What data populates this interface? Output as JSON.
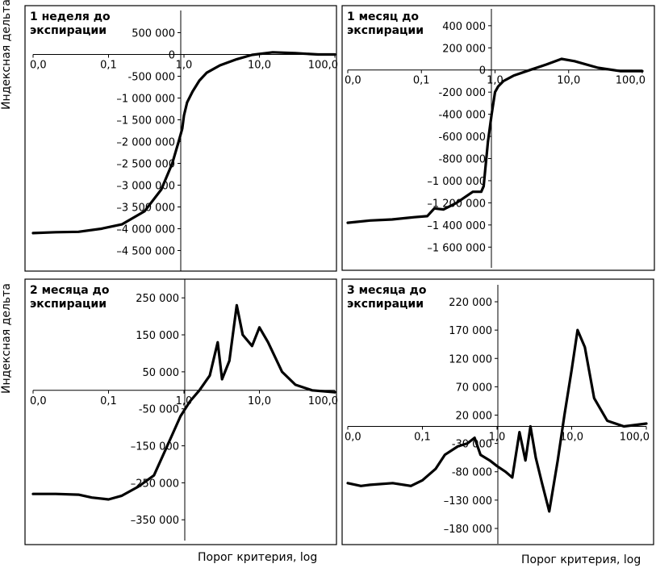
{
  "y_axis_label": "Индексная дельта",
  "x_axis_label": "Порог критерия, log",
  "chart_data": [
    {
      "type": "line",
      "title": "1 неделя до экспирации",
      "x_scale": "log",
      "x_ticks": [
        "0,0",
        "0,1",
        "1,0",
        "10,0",
        "100,0"
      ],
      "y_ticks": [
        "500 000",
        "0",
        "-500 000",
        "–1 000 000",
        "–1 500 000",
        "–2 000 000",
        "–2 500 000",
        "–3 000 000",
        "–3 500 000",
        "–4 000 000",
        "–4 500 000"
      ],
      "ylim": [
        -4750000,
        750000
      ],
      "series": [
        {
          "x": [
            0.01,
            0.02,
            0.04,
            0.08,
            0.15,
            0.3,
            0.5,
            0.7,
            0.85,
            0.95,
            1.0,
            1.1,
            1.3,
            1.6,
            2,
            3,
            5,
            8,
            15,
            30,
            60,
            100
          ],
          "y": [
            -4100000,
            -4080000,
            -4070000,
            -4000000,
            -3900000,
            -3600000,
            -3100000,
            -2500000,
            -2000000,
            -1700000,
            -1400000,
            -1100000,
            -850000,
            -600000,
            -420000,
            -250000,
            -110000,
            -10000,
            50000,
            30000,
            0,
            0
          ]
        }
      ]
    },
    {
      "type": "line",
      "title": "1 месяц до экспирации",
      "x_scale": "log",
      "x_ticks": [
        "0,0",
        "0,1",
        "1,0",
        "10,0",
        "100,0"
      ],
      "y_ticks": [
        "400 000",
        "200 000",
        "0",
        "-200 000",
        "-400 000",
        "-600 000",
        "-800 000",
        "–1 000 000",
        "–1 200 000",
        "–1 400 000",
        "–1 600 000"
      ],
      "ylim": [
        -1700000,
        450000
      ],
      "series": [
        {
          "x": [
            0.01,
            0.02,
            0.04,
            0.08,
            0.12,
            0.15,
            0.2,
            0.3,
            0.5,
            0.65,
            0.7,
            0.8,
            0.9,
            1.0,
            1.1,
            1.3,
            1.8,
            3,
            5,
            8,
            12,
            25,
            50,
            100
          ],
          "y": [
            -1380000,
            -1360000,
            -1350000,
            -1330000,
            -1320000,
            -1250000,
            -1260000,
            -1200000,
            -1100000,
            -1100000,
            -1050000,
            -650000,
            -400000,
            -200000,
            -150000,
            -100000,
            -50000,
            0,
            50000,
            100000,
            80000,
            20000,
            -10000,
            -10000
          ]
        }
      ]
    },
    {
      "type": "line",
      "title": "2 месяца до экспирации",
      "x_scale": "log",
      "x_ticks": [
        "0,0",
        "0,1",
        "1,0",
        "10,0",
        "100,0"
      ],
      "y_ticks": [
        "250 000",
        "150 000",
        "50 000",
        "-50 000",
        "–150 000",
        "–250 000",
        "–350 000"
      ],
      "ylim": [
        -380000,
        270000
      ],
      "series": [
        {
          "x": [
            0.01,
            0.02,
            0.04,
            0.06,
            0.1,
            0.15,
            0.25,
            0.4,
            0.6,
            0.9,
            1.2,
            1.6,
            2.2,
            2.8,
            3.2,
            4,
            5,
            6,
            8,
            10,
            13,
            20,
            30,
            50,
            100
          ],
          "y": [
            -280000,
            -280000,
            -282000,
            -290000,
            -295000,
            -285000,
            -260000,
            -230000,
            -150000,
            -70000,
            -30000,
            0,
            40000,
            130000,
            30000,
            80000,
            230000,
            150000,
            120000,
            170000,
            130000,
            50000,
            15000,
            0,
            -5000
          ]
        }
      ]
    },
    {
      "type": "line",
      "title": "3 месяца до экспирации",
      "x_scale": "log",
      "x_ticks": [
        "0,0",
        "0,1",
        "1,0",
        "10,0",
        "100,0"
      ],
      "y_ticks": [
        "220 000",
        "170 000",
        "120 000",
        "70 000",
        "20 000",
        "-30 000",
        "-80 000",
        "–130 000",
        "–180 000"
      ],
      "ylim": [
        -190000,
        230000
      ],
      "series": [
        {
          "x": [
            0.01,
            0.015,
            0.02,
            0.04,
            0.07,
            0.1,
            0.15,
            0.2,
            0.3,
            0.4,
            0.5,
            0.6,
            0.8,
            1.0,
            1.3,
            1.6,
            2,
            2.4,
            2.8,
            3.3,
            4,
            5,
            6.5,
            8,
            10,
            12,
            15,
            20,
            30,
            50,
            100
          ],
          "y": [
            -100000,
            -105000,
            -103000,
            -100000,
            -105000,
            -95000,
            -75000,
            -50000,
            -35000,
            -30000,
            -20000,
            -50000,
            -60000,
            -70000,
            -80000,
            -90000,
            -10000,
            -60000,
            0,
            -55000,
            -100000,
            -150000,
            -60000,
            20000,
            100000,
            170000,
            140000,
            50000,
            10000,
            0,
            5000
          ]
        }
      ]
    }
  ]
}
